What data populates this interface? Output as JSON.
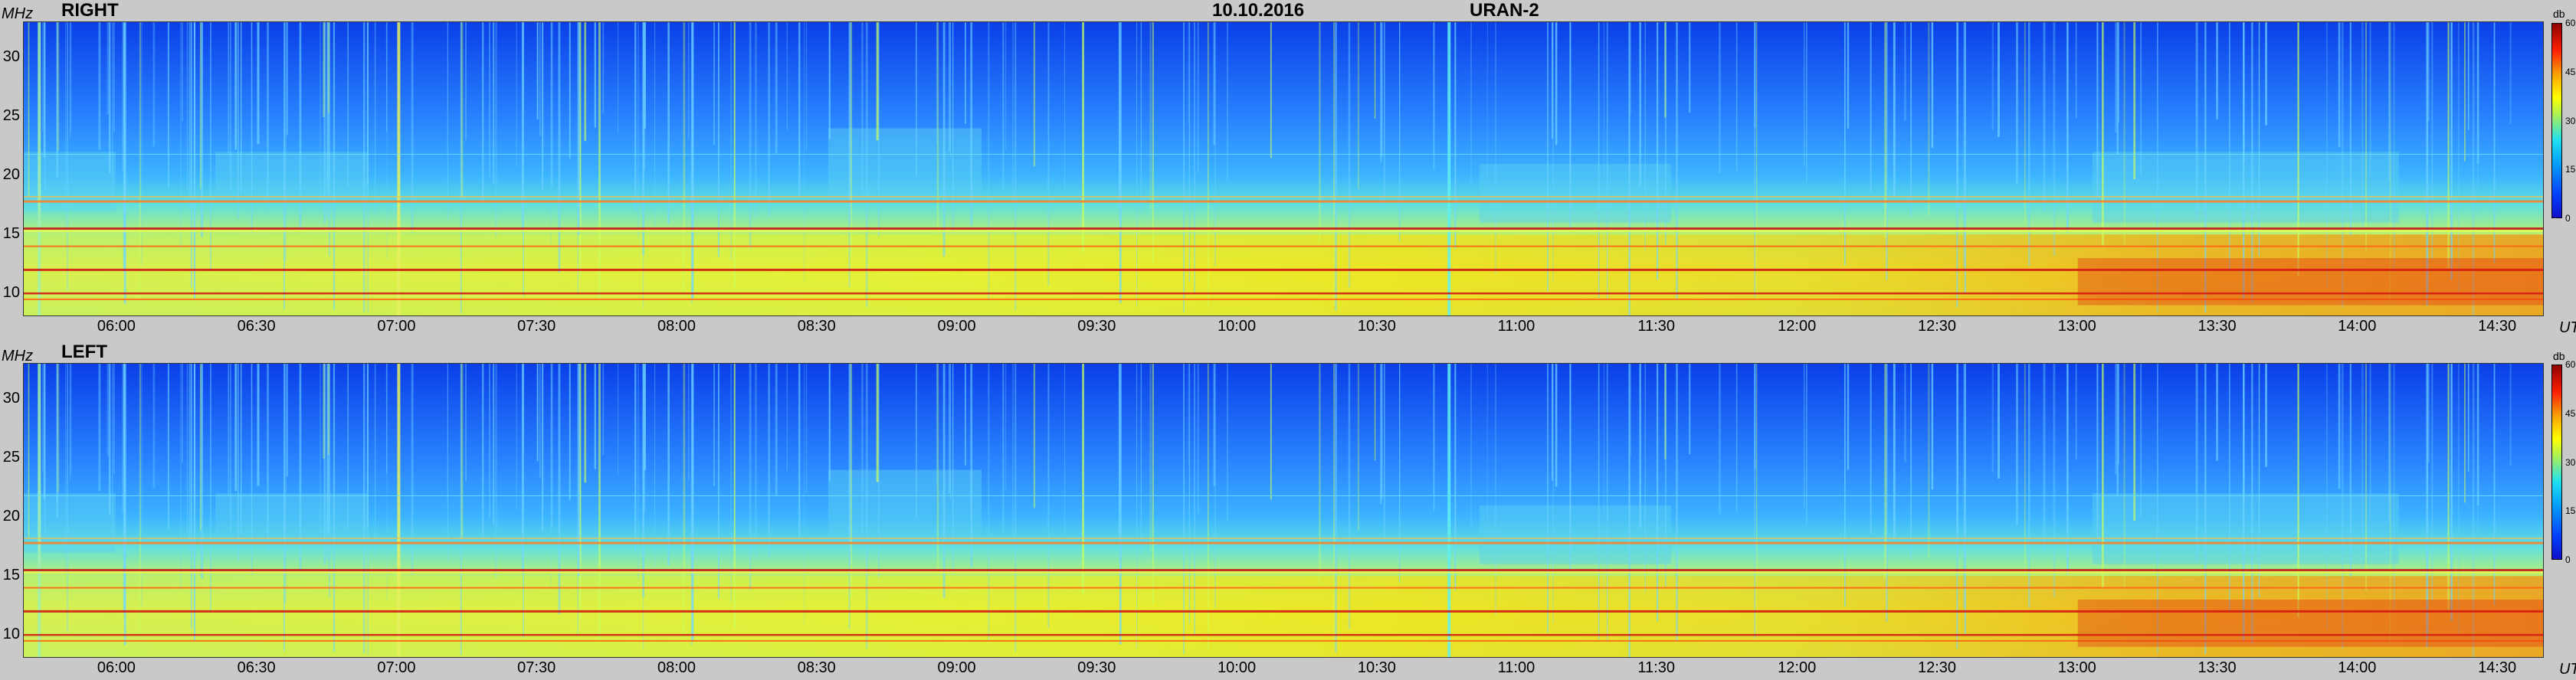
{
  "header": {
    "date": "10.10.2016",
    "station": "URAN-2"
  },
  "units": {
    "freq": "MHz",
    "time": "UT",
    "db": "db"
  },
  "colors": {
    "background": "#c9c9c9",
    "low": "#1010c8",
    "mid": "#ffff00",
    "high": "#900000"
  },
  "chart_data": [
    {
      "type": "heatmap",
      "title": "RIGHT",
      "xlabel": "UT",
      "ylabel": "MHz",
      "x_ticks": [
        "06:00",
        "06:30",
        "07:00",
        "07:30",
        "08:00",
        "08:30",
        "09:00",
        "09:30",
        "10:00",
        "10:30",
        "11:00",
        "11:30",
        "12:00",
        "12:30",
        "13:00",
        "13:30",
        "14:00",
        "14:30"
      ],
      "x_range": [
        "05:40",
        "14:40"
      ],
      "y_ticks": [
        10,
        15,
        20,
        25,
        30
      ],
      "ylim": [
        8,
        33
      ],
      "colorbar": {
        "label": "db",
        "ticks": [
          0,
          15,
          30,
          45,
          60
        ],
        "range": [
          0,
          60
        ]
      }
    },
    {
      "type": "heatmap",
      "title": "LEFT",
      "xlabel": "UT",
      "ylabel": "MHz",
      "x_ticks": [
        "06:00",
        "06:30",
        "07:00",
        "07:30",
        "08:00",
        "08:30",
        "09:00",
        "09:30",
        "10:00",
        "10:30",
        "11:00",
        "11:30",
        "12:00",
        "12:30",
        "13:00",
        "13:30",
        "14:00",
        "14:30"
      ],
      "x_range": [
        "05:40",
        "14:40"
      ],
      "y_ticks": [
        10,
        15,
        20,
        25,
        30
      ],
      "ylim": [
        8,
        33
      ],
      "colorbar": {
        "label": "db",
        "ticks": [
          0,
          15,
          30,
          45,
          60
        ],
        "range": [
          0,
          60
        ]
      }
    }
  ]
}
